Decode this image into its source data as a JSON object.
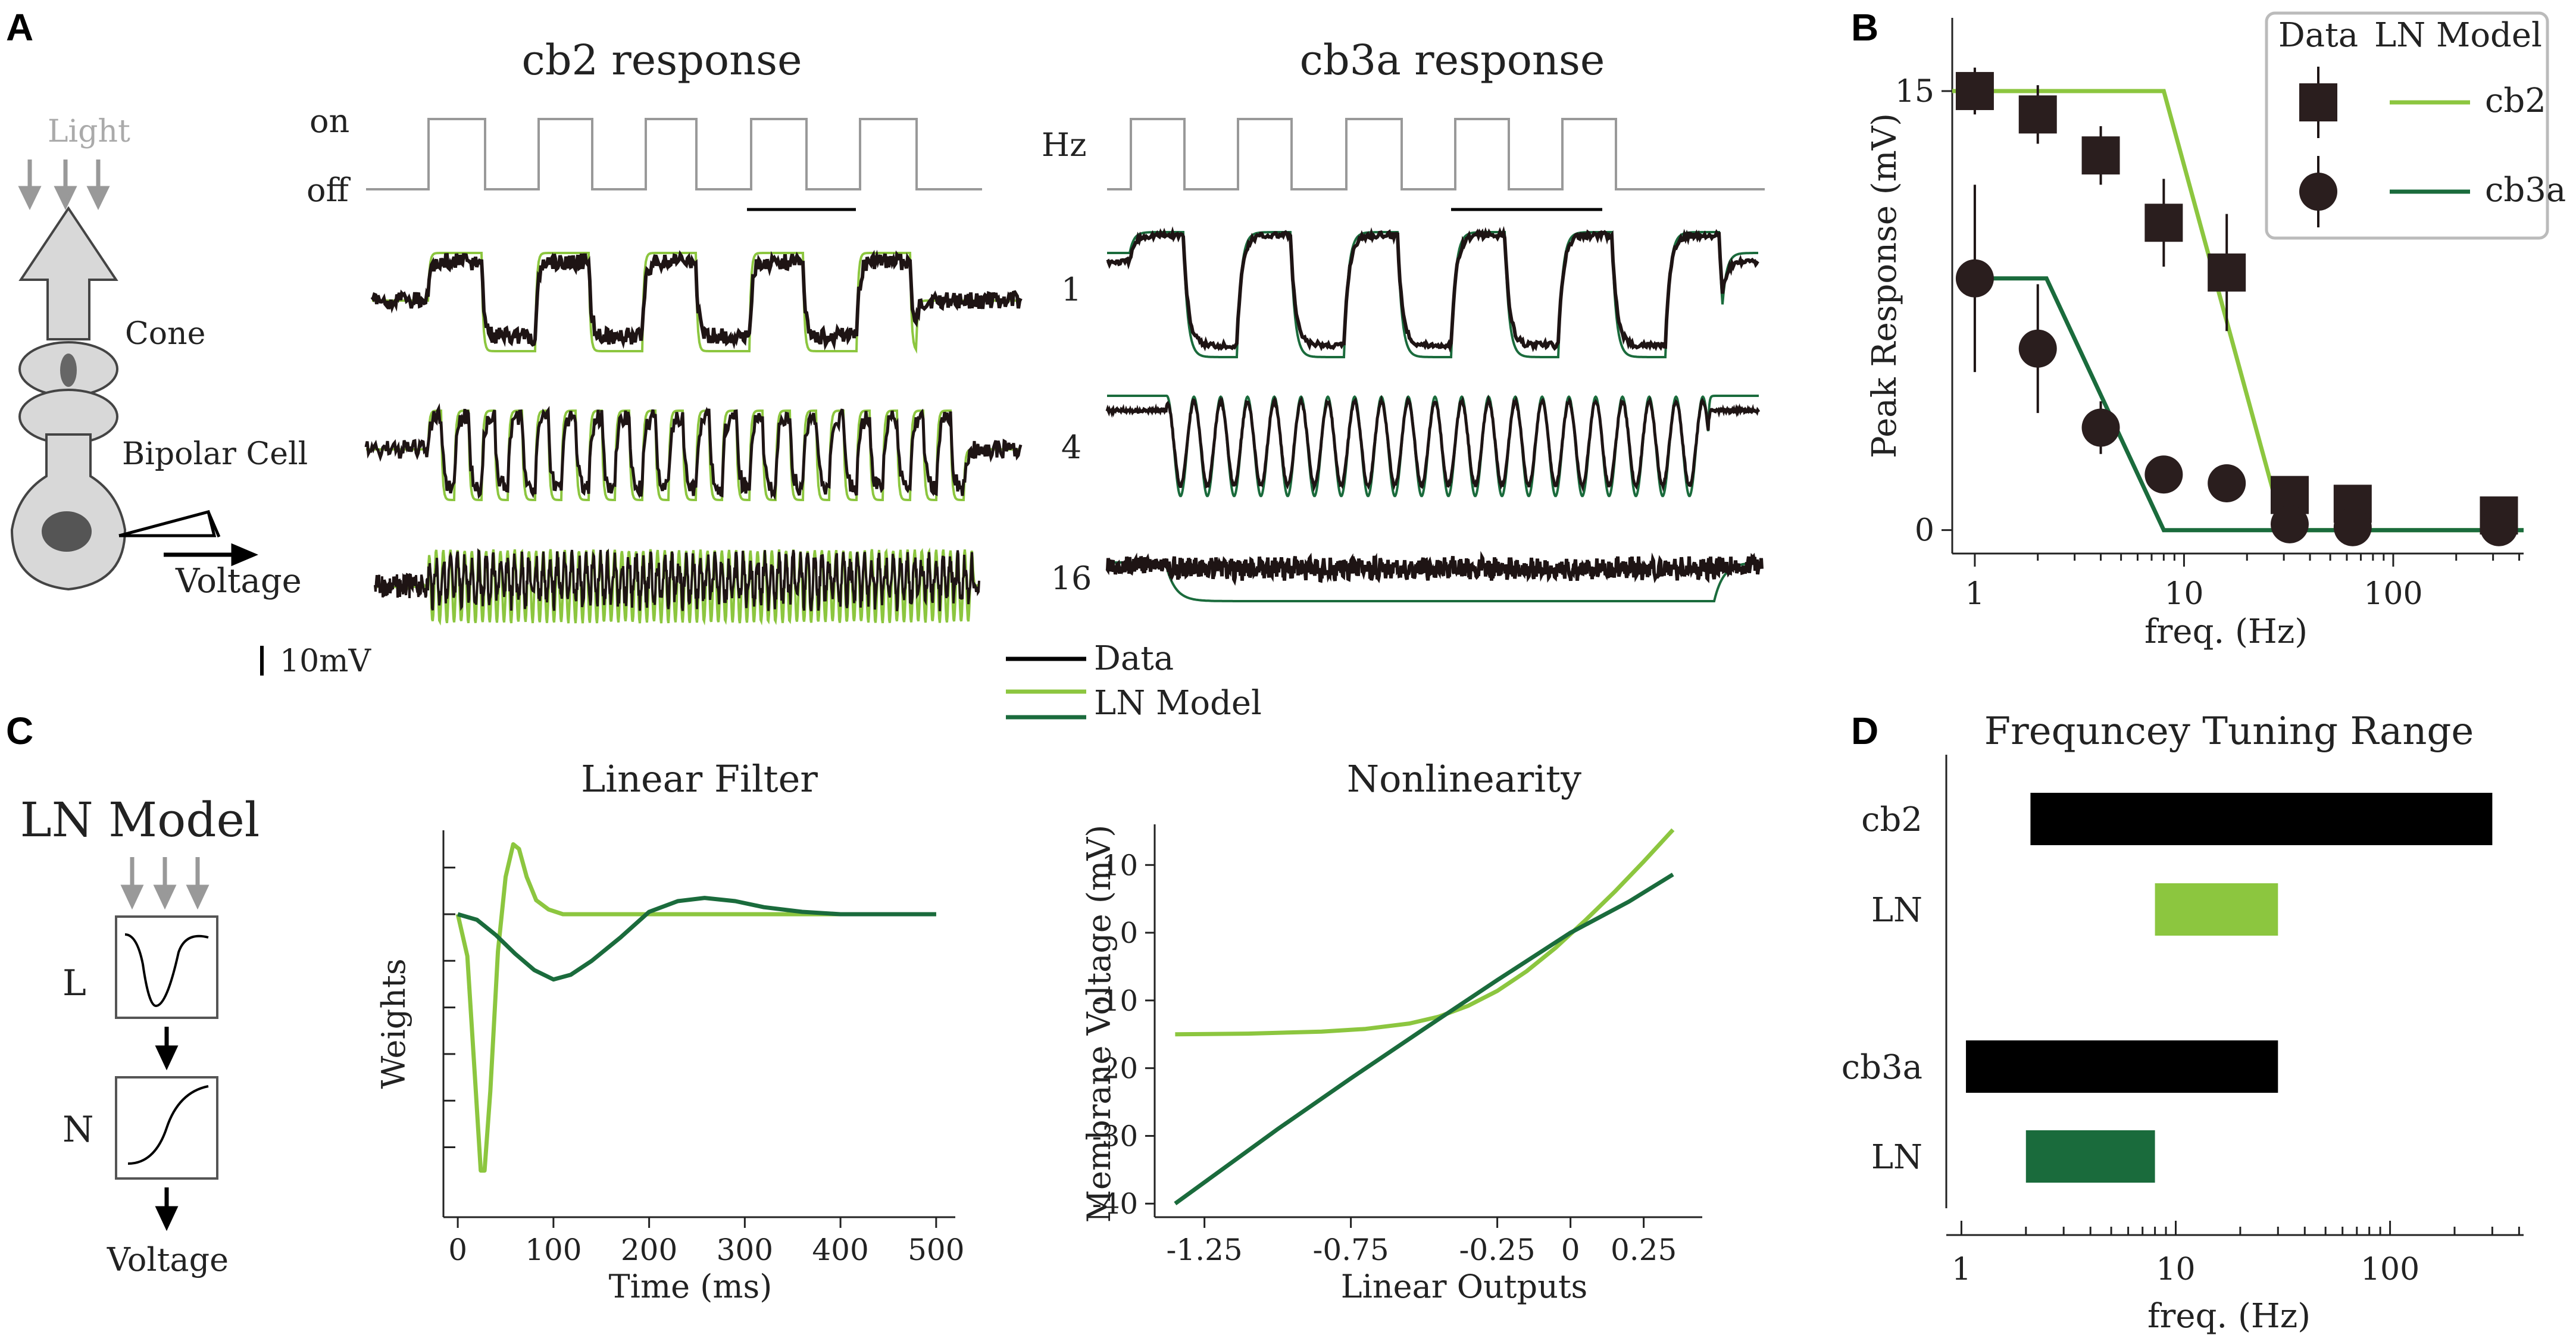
{
  "panel_labels": {
    "a": "A",
    "b": "B",
    "c": "C",
    "d": "D"
  },
  "colors": {
    "cb2": "#8cc63f",
    "cb3a": "#1a6b3c",
    "data": "#1e1414",
    "gray": "#9a9a9a"
  },
  "panelA": {
    "title_cb2": "cb2 response",
    "title_cb3a": "cb3a response",
    "on_label": "on",
    "off_label": "off",
    "hz_label": "Hz",
    "rows": [
      "1",
      "4",
      "16"
    ],
    "scale_label": "10mV",
    "schematic": {
      "light": "Light",
      "cone": "Cone",
      "bipolar": "Bipolar  Cell",
      "voltage": "Voltage"
    },
    "legend": {
      "data": "Data",
      "ln_model": "LN Model"
    }
  },
  "panelC": {
    "ln_title": "LN Model",
    "l_label": "L",
    "n_label": "N",
    "voltage_label": "Voltage"
  },
  "chart_data": [
    {
      "id": "B",
      "type": "scatter",
      "title": "",
      "xlabel": "freq. (Hz)",
      "ylabel": "Peak Response (mV)",
      "xscale": "log",
      "xlim": [
        0.78,
        420
      ],
      "ylim": [
        -0.8,
        17.5
      ],
      "xticks": [
        1,
        10,
        100
      ],
      "xtick_labels": [
        "1",
        "10",
        "100"
      ],
      "yticks": [
        0,
        15
      ],
      "ytick_labels": [
        "0",
        "15"
      ],
      "legend": {
        "title_data": "Data",
        "title_model": "LN Model",
        "position": "top-right"
      },
      "series": [
        {
          "name": "cb2",
          "marker": "square",
          "x": [
            1,
            2,
            4,
            8,
            16,
            32,
            64,
            320
          ],
          "y": [
            15,
            14.2,
            12.8,
            10.5,
            8.8,
            1.2,
            0.9,
            0.5
          ],
          "err": [
            0.8,
            1.0,
            1.0,
            1.5,
            2.0,
            0.5,
            0.5,
            0.6
          ]
        },
        {
          "name": "cb3a",
          "marker": "circle",
          "x": [
            1,
            2,
            4,
            8,
            16,
            32,
            64,
            320
          ],
          "y": [
            8.6,
            6.2,
            3.5,
            1.9,
            1.6,
            0.2,
            0.1,
            0.1
          ],
          "err": [
            3.2,
            2.2,
            0.9,
            0.3,
            0.3,
            0.1,
            0.1,
            0.3
          ]
        }
      ],
      "model_lines": [
        {
          "name": "cb2",
          "x": [
            0.78,
            8,
            30,
            420
          ],
          "y": [
            15,
            15,
            0,
            0
          ]
        },
        {
          "name": "cb3a",
          "x": [
            1,
            2.2,
            8,
            420
          ],
          "y": [
            8.6,
            8.6,
            0,
            0
          ]
        }
      ]
    },
    {
      "id": "C-filter",
      "type": "line",
      "title": "Linear Filter",
      "xlabel": "Time (ms)",
      "ylabel": "Weights",
      "xlim": [
        -15,
        520
      ],
      "ylim": [
        -6.5,
        1.8
      ],
      "xticks": [
        0,
        100,
        200,
        300,
        400,
        500
      ],
      "xtick_labels": [
        "0",
        "100",
        "200",
        "300",
        "400",
        "500"
      ],
      "yticks": [
        -5,
        -4,
        -3,
        -2,
        -1,
        0,
        1
      ],
      "series": [
        {
          "name": "cb2",
          "x": [
            0,
            10,
            18,
            24,
            28,
            34,
            42,
            50,
            58,
            64,
            72,
            82,
            95,
            110,
            130,
            500
          ],
          "y": [
            0,
            -0.9,
            -3.5,
            -5.5,
            -5.5,
            -3.8,
            -0.8,
            0.8,
            1.5,
            1.4,
            0.8,
            0.3,
            0.1,
            0,
            0,
            0
          ]
        },
        {
          "name": "cb3a",
          "x": [
            0,
            20,
            40,
            60,
            80,
            100,
            118,
            140,
            170,
            200,
            230,
            258,
            290,
            320,
            360,
            400,
            450,
            500
          ],
          "y": [
            0,
            -0.12,
            -0.45,
            -0.85,
            -1.2,
            -1.4,
            -1.3,
            -1.0,
            -0.5,
            0.05,
            0.28,
            0.35,
            0.28,
            0.15,
            0.05,
            0,
            0,
            0
          ]
        }
      ]
    },
    {
      "id": "C-nonlinearity",
      "type": "line",
      "title": "Nonlinearity",
      "xlabel": "Linear Outputs",
      "ylabel": "Membrane Voltage (mV)",
      "xlim": [
        -1.42,
        0.45
      ],
      "ylim": [
        -42,
        16
      ],
      "xticks": [
        -1.25,
        -0.75,
        -0.25,
        0,
        0.25
      ],
      "xtick_labels": [
        "-1.25",
        "-0.75",
        "-0.25",
        "0",
        "0.25"
      ],
      "yticks": [
        10,
        0,
        -10,
        -20,
        -30,
        -40
      ],
      "ytick_labels": [
        "10",
        "0",
        "-10",
        "-20",
        "-30",
        "-40"
      ],
      "series": [
        {
          "name": "cb2",
          "x": [
            -1.35,
            -1.1,
            -0.85,
            -0.7,
            -0.55,
            -0.45,
            -0.35,
            -0.25,
            -0.15,
            -0.05,
            0.05,
            0.15,
            0.25,
            0.35
          ],
          "y": [
            -15,
            -14.9,
            -14.6,
            -14.2,
            -13.4,
            -12.4,
            -10.8,
            -8.6,
            -5.7,
            -2.2,
            1.8,
            6.0,
            10.5,
            15.2
          ]
        },
        {
          "name": "cb3a",
          "x": [
            -1.35,
            -1.0,
            -0.75,
            -0.5,
            -0.25,
            0,
            0.2,
            0.35
          ],
          "y": [
            -40,
            -29,
            -21.5,
            -14.2,
            -7,
            0,
            4.6,
            8.6
          ]
        }
      ]
    },
    {
      "id": "D",
      "type": "bar",
      "title": "Frequncey Tuning Range",
      "xlabel": "freq. (Hz)",
      "xscale": "log",
      "xlim": [
        0.85,
        420
      ],
      "xticks": [
        1,
        10,
        100
      ],
      "xtick_labels": [
        "1",
        "10",
        "100"
      ],
      "bars": [
        {
          "label": "cb2",
          "color": "#000000",
          "low": 2.1,
          "high": 300
        },
        {
          "label": "LN",
          "color": "#8cc63f",
          "low": 8,
          "high": 30
        },
        {
          "label": "cb3a",
          "color": "#000000",
          "low": 1.05,
          "high": 30
        },
        {
          "label": "LN",
          "color": "#1a6b3c",
          "low": 2,
          "high": 8
        }
      ]
    }
  ]
}
